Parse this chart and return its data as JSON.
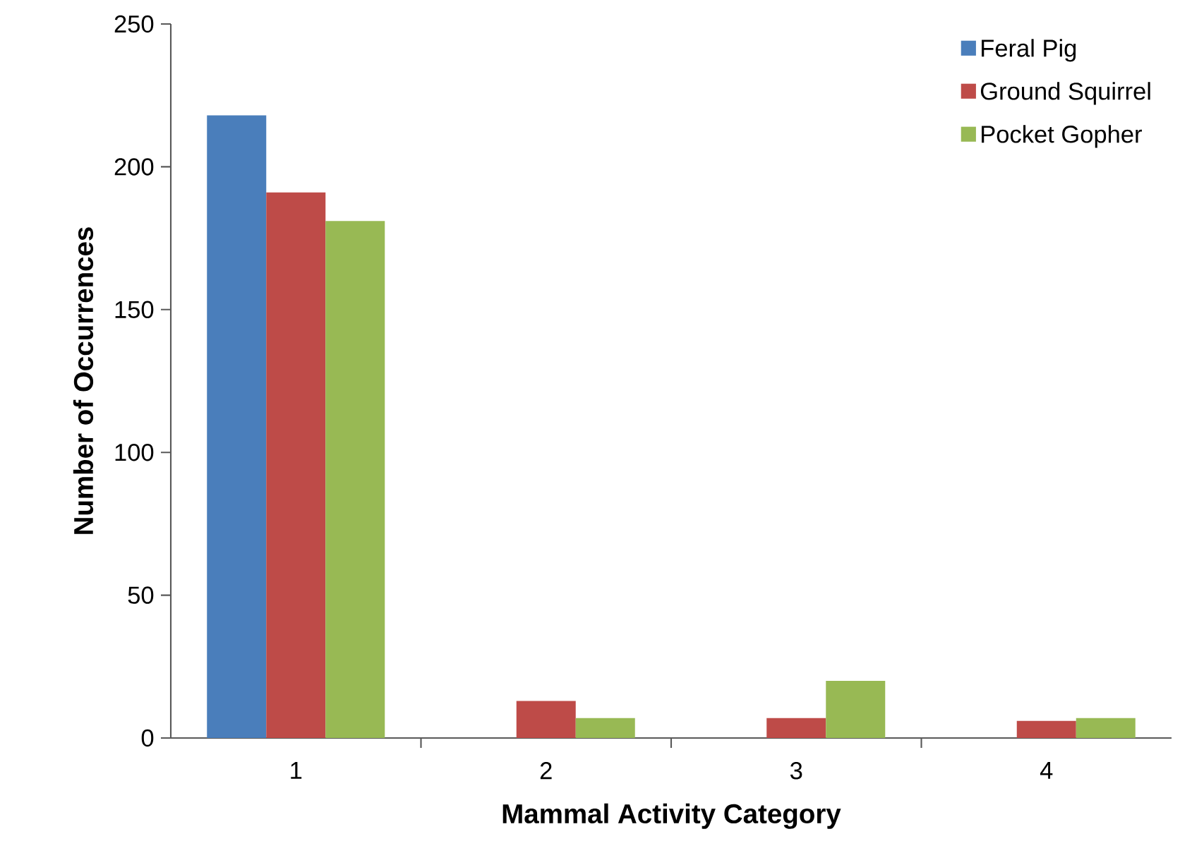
{
  "chart_data": {
    "type": "bar",
    "xlabel": "Mammal Activity Category",
    "ylabel": "Number of Occurrences",
    "categories": [
      "1",
      "2",
      "3",
      "4"
    ],
    "series": [
      {
        "name": "Feral Pig",
        "color": "#4a7ebb",
        "values": [
          218,
          0,
          0,
          0
        ]
      },
      {
        "name": "Ground Squirrel",
        "color": "#be4b48",
        "values": [
          191,
          13,
          7,
          6
        ]
      },
      {
        "name": "Pocket Gopher",
        "color": "#98b954",
        "values": [
          181,
          7,
          20,
          7
        ]
      }
    ],
    "ylim": [
      0,
      250
    ],
    "yticks": [
      0,
      50,
      100,
      150,
      200,
      250
    ],
    "legend": "top right"
  }
}
